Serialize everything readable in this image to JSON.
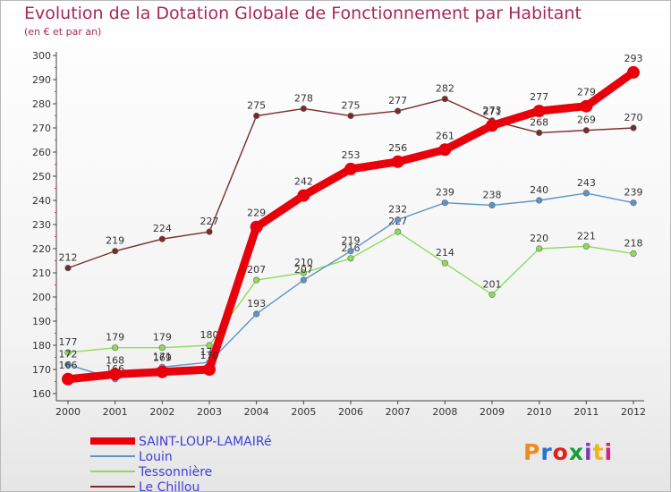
{
  "title": "Evolution de la Dotation Globale de Fonctionnement par Habitant",
  "subtitle": "(en € et par an)",
  "logo": "Proxiti",
  "chart_data": {
    "type": "line",
    "title": "Evolution de la Dotation Globale de Fonctionnement par Habitant",
    "subtitle": "(en € et par an)",
    "x": [
      "2000",
      "2001",
      "2002",
      "2003",
      "2004",
      "2005",
      "2006",
      "2007",
      "2008",
      "2009",
      "2010",
      "2011",
      "2012"
    ],
    "ylim": [
      160,
      300
    ],
    "yticks": [
      160,
      170,
      180,
      190,
      200,
      210,
      220,
      230,
      240,
      250,
      260,
      270,
      280,
      290,
      300
    ],
    "grid": false,
    "legend": "bottom-left",
    "series": [
      {
        "name": "SAINT-LOUP-LAMAIRé",
        "color": "#e8000b",
        "values": [
          166,
          168,
          169,
          170,
          229,
          242,
          253,
          256,
          261,
          271,
          277,
          279,
          293
        ]
      },
      {
        "name": "Louin",
        "color": "#5d94c8",
        "values": [
          172,
          166,
          171,
          173,
          193,
          207,
          219,
          232,
          239,
          238,
          240,
          243,
          239
        ]
      },
      {
        "name": "Tessonnière",
        "color": "#8edb5a",
        "values": [
          177,
          179,
          179,
          180,
          207,
          210,
          216,
          227,
          214,
          201,
          220,
          221,
          218
        ]
      },
      {
        "name": "Le Chillou",
        "color": "#7a2a2a",
        "values": [
          212,
          219,
          224,
          227,
          275,
          278,
          275,
          277,
          282,
          273,
          268,
          269,
          270
        ]
      }
    ]
  }
}
